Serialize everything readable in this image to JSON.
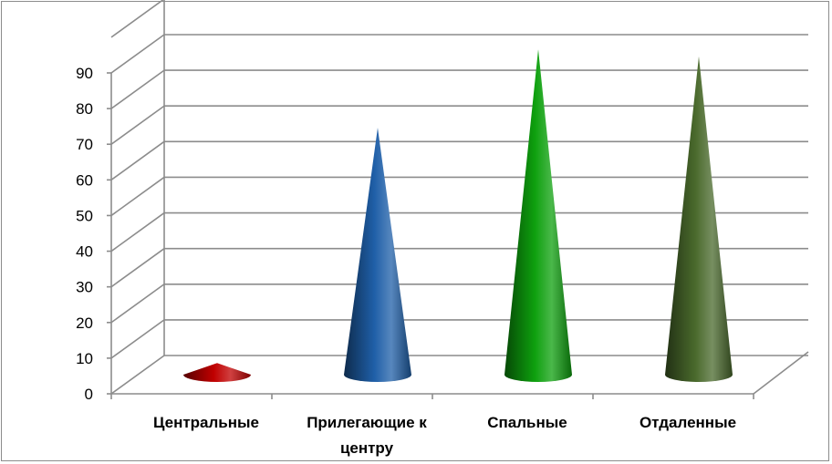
{
  "chart_data": {
    "type": "bar",
    "style": "3d-cone",
    "categories": [
      "Центральные",
      "Прилегающие к центру",
      "Спальные",
      "Отдаленные"
    ],
    "category_label_lines": [
      [
        "Центральные"
      ],
      [
        "Прилегающие к",
        "центру"
      ],
      [
        "Спальные"
      ],
      [
        "Отдаленные"
      ]
    ],
    "values": [
      3,
      69,
      91,
      89
    ],
    "colors": [
      "#c00000",
      "#1f5fa8",
      "#0ea00e",
      "#4a6a2c"
    ],
    "ylim": [
      0,
      90
    ],
    "yticks": [
      0,
      10,
      20,
      30,
      40,
      50,
      60,
      70,
      80,
      90
    ],
    "grid": true,
    "legend": "none",
    "title": "",
    "xlabel": "",
    "ylabel": ""
  }
}
